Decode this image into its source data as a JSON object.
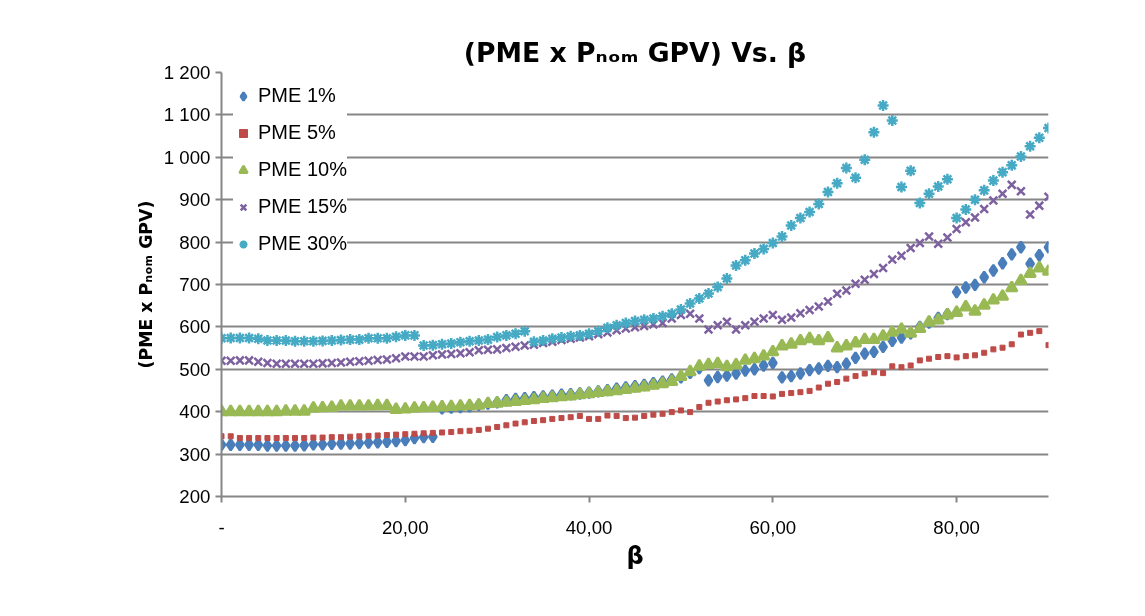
{
  "chart_data": {
    "type": "scatter",
    "title": "(PME x Pₙₒₘ GPV) Vs. β",
    "xlabel": "β",
    "ylabel": "(PME x Pₙₒₘ GPV)",
    "x": [
      0,
      1,
      2,
      3,
      4,
      5,
      6,
      7,
      8,
      9,
      10,
      11,
      12,
      13,
      14,
      15,
      16,
      17,
      18,
      19,
      20,
      21,
      22,
      23,
      24,
      25,
      26,
      27,
      28,
      29,
      30,
      31,
      32,
      33,
      34,
      35,
      36,
      37,
      38,
      39,
      40,
      41,
      42,
      43,
      44,
      45,
      46,
      47,
      48,
      49,
      50,
      51,
      52,
      53,
      54,
      55,
      56,
      57,
      58,
      59,
      60,
      61,
      62,
      63,
      64,
      65,
      66,
      67,
      68,
      69,
      70,
      71,
      72,
      73,
      74,
      75,
      76,
      77,
      78,
      79,
      80,
      81,
      82,
      83,
      84,
      85,
      86,
      87,
      88,
      89,
      90
    ],
    "xlim": [
      0,
      90
    ],
    "ylim": [
      200,
      1200
    ],
    "xticks": [
      {
        "value": 0,
        "label": "-"
      },
      {
        "value": 20,
        "label": "20,00"
      },
      {
        "value": 40,
        "label": "40,00"
      },
      {
        "value": 60,
        "label": "60,00"
      },
      {
        "value": 80,
        "label": "80,00"
      }
    ],
    "yticks": [
      200,
      300,
      400,
      500,
      600,
      700,
      800,
      900,
      {
        "value": 1000,
        "label": "1 000"
      },
      {
        "value": 1100,
        "label": "1 100"
      },
      {
        "value": 1200,
        "label": "1 200"
      }
    ],
    "grid": "y",
    "legend": "top left",
    "series": [
      {
        "name": "PME 1%",
        "color": "#4a7ebb",
        "marker": "diamond",
        "values": [
          322,
          322,
          322,
          322,
          322,
          320,
          320,
          320,
          320,
          321,
          323,
          323,
          324,
          325,
          325,
          326,
          327,
          328,
          329,
          331,
          333,
          338,
          340,
          341,
          408,
          410,
          411,
          413,
          416,
          419,
          422,
          427,
          430,
          432,
          434,
          436,
          438,
          440,
          441,
          443,
          445,
          448,
          451,
          454,
          457,
          460,
          463,
          467,
          471,
          476,
          481,
          492,
          503,
          474,
          482,
          485,
          490,
          497,
          500,
          509,
          515,
          481,
          484,
          490,
          498,
          502,
          508,
          505,
          513,
          527,
          537,
          541,
          553,
          567,
          575,
          585,
          600,
          610,
          621,
          630,
          682,
          693,
          699,
          717,
          733,
          750,
          771,
          788,
          749,
          769,
          788
        ]
      },
      {
        "name": "PME 5%",
        "color": "#be4b48",
        "marker": "square",
        "values": [
          342,
          342,
          338,
          338,
          338,
          338,
          338,
          338,
          338,
          338,
          339,
          339,
          340,
          340,
          341,
          342,
          343,
          344,
          345,
          346,
          347,
          348,
          349,
          350,
          351,
          352,
          354,
          355,
          357,
          360,
          364,
          368,
          372,
          375,
          378,
          380,
          383,
          385,
          387,
          390,
          383,
          383,
          391,
          390,
          385,
          386,
          390,
          393,
          395,
          399,
          403,
          399,
          411,
          421,
          424,
          427,
          429,
          432,
          437,
          437,
          436,
          442,
          444,
          446,
          449,
          457,
          466,
          470,
          478,
          484,
          490,
          493,
          491,
          507,
          505,
          509,
          521,
          525,
          529,
          531,
          528,
          531,
          533,
          539,
          547,
          551,
          559,
          582,
          586,
          590,
          557
        ]
      },
      {
        "name": "PME 10%",
        "color": "#98b954",
        "marker": "triangle",
        "values": [
          400,
          400,
          400,
          400,
          400,
          400,
          400,
          401,
          401,
          401,
          408,
          409,
          410,
          413,
          413,
          413,
          413,
          414,
          414,
          405,
          406,
          408,
          409,
          410,
          411,
          412,
          413,
          414,
          415,
          419,
          420,
          422,
          424,
          426,
          428,
          431,
          433,
          435,
          437,
          440,
          442,
          445,
          447,
          449,
          452,
          455,
          458,
          462,
          466,
          471,
          483,
          494,
          507,
          511,
          513,
          506,
          510,
          521,
          525,
          531,
          541,
          555,
          559,
          567,
          572,
          567,
          574,
          550,
          555,
          562,
          570,
          570,
          578,
          587,
          594,
          585,
          596,
          611,
          616,
          628,
          634,
          647,
          637,
          651,
          663,
          672,
          692,
          709,
          726,
          739,
          731
        ]
      },
      {
        "name": "PME 15%",
        "color": "#7d60a0",
        "marker": "x",
        "values": [
          520,
          520,
          521,
          521,
          518,
          515,
          513,
          513,
          513,
          513,
          513,
          514,
          515,
          516,
          518,
          519,
          520,
          522,
          523,
          526,
          530,
          530,
          530,
          533,
          535,
          536,
          538,
          540,
          545,
          546,
          547,
          550,
          553,
          556,
          558,
          562,
          565,
          569,
          572,
          575,
          578,
          583,
          587,
          592,
          596,
          599,
          602,
          606,
          609,
          620,
          628,
          631,
          620,
          594,
          604,
          612,
          594,
          604,
          612,
          620,
          628,
          617,
          622,
          632,
          640,
          648,
          660,
          678,
          686,
          702,
          711,
          725,
          739,
          759,
          768,
          786,
          798,
          813,
          796,
          811,
          831,
          847,
          858,
          878,
          898,
          914,
          935,
          920,
          865,
          886,
          907
        ]
      },
      {
        "name": "PME 30%",
        "color": "#46aac5",
        "marker": "cross",
        "values": [
          573,
          574,
          574,
          574,
          572,
          568,
          568,
          568,
          566,
          566,
          566,
          567,
          568,
          569,
          570,
          570,
          573,
          573,
          573,
          577,
          580,
          580,
          556,
          557,
          559,
          561,
          564,
          566,
          568,
          570,
          576,
          580,
          584,
          590,
          565,
          568,
          572,
          575,
          578,
          580,
          584,
          590,
          598,
          604,
          609,
          614,
          617,
          620,
          625,
          631,
          641,
          655,
          667,
          679,
          694,
          714,
          745,
          757,
          773,
          784,
          798,
          813,
          839,
          857,
          871,
          890,
          918,
          939,
          975,
          952,
          994,
          1059,
          1122,
          1087,
          930,
          968,
          892,
          914,
          931,
          948,
          857,
          877,
          900,
          922,
          945,
          965,
          981,
          1002,
          1026,
          1046,
          1069
        ]
      }
    ]
  }
}
